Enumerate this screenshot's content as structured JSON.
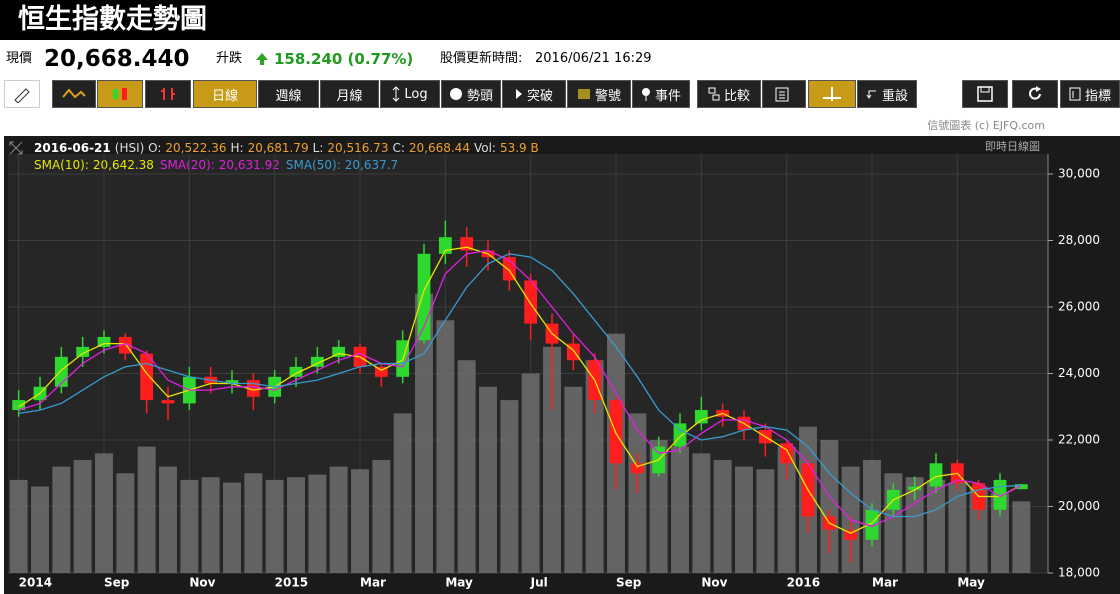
{
  "header": {
    "title": "恒生指數走勢圖"
  },
  "quote": {
    "price_label": "現價",
    "price": "20,668.440",
    "change_label": "升跌",
    "change": "158.240 (0.77%)",
    "update_label": "股價更新時間:",
    "update_time": "2016/06/21 16:29"
  },
  "toolbar": {
    "buttons": [
      "日線",
      "週線",
      "月線",
      "Log",
      "勢頭",
      "突破",
      "警號",
      "事件",
      "比較",
      "重設",
      "指標"
    ]
  },
  "chart_data": {
    "type": "candlestick",
    "credit": "信號圖表 (c) EJFQ.com",
    "mode": "即時日線圖",
    "info_line": [
      "2016-06-21",
      "(HSI) O:",
      "20,522.36",
      "H:",
      "20,681.79",
      "L:",
      "20,516.73",
      "C:",
      "20,668.44",
      "Vol:",
      "53.9 B"
    ],
    "categories": [
      "2014",
      null,
      null,
      null,
      "Sep",
      null,
      null,
      null,
      "Nov",
      null,
      null,
      null,
      "2015",
      null,
      null,
      null,
      "Mar",
      null,
      null,
      null,
      "May",
      null,
      null,
      null,
      "Jul",
      null,
      null,
      null,
      "Sep",
      null,
      null,
      null,
      "Nov",
      null,
      null,
      null,
      "2016",
      null,
      null,
      null,
      "Mar",
      null,
      null,
      null,
      "May",
      null,
      null,
      null
    ],
    "open": [
      22900,
      23200,
      23600,
      24500,
      24800,
      25100,
      24600,
      23200,
      23100,
      23900,
      23700,
      23800,
      23300,
      23900,
      24200,
      24500,
      24800,
      24200,
      23900,
      25000,
      27600,
      28100,
      27700,
      27500,
      26800,
      25500,
      24900,
      24400,
      23200,
      21300,
      21000,
      21800,
      22500,
      22900,
      22700,
      22300,
      21900,
      21300,
      19700,
      19300,
      19000,
      19900,
      20500,
      20600,
      21300,
      20700,
      19900,
      20522.36
    ],
    "high": [
      23500,
      23900,
      24800,
      25100,
      25300,
      25200,
      24700,
      23600,
      24200,
      24200,
      24100,
      24000,
      24100,
      24500,
      24800,
      25000,
      24900,
      24300,
      25300,
      27900,
      28600,
      28400,
      28000,
      27700,
      27000,
      25800,
      25200,
      24600,
      23300,
      21600,
      22100,
      22800,
      23300,
      23100,
      22900,
      22500,
      22000,
      21400,
      19900,
      19700,
      20100,
      20700,
      20900,
      21600,
      21400,
      20800,
      21000,
      20681.79
    ],
    "low": [
      22700,
      22900,
      23400,
      24200,
      24600,
      24400,
      22800,
      22600,
      22900,
      23400,
      23400,
      22900,
      23100,
      23600,
      24000,
      24300,
      24000,
      23600,
      23700,
      24900,
      27300,
      27200,
      27100,
      26500,
      25000,
      22900,
      24100,
      22800,
      20500,
      20400,
      20900,
      21600,
      22300,
      22400,
      22000,
      21500,
      20800,
      19200,
      18600,
      18300,
      18800,
      19700,
      20200,
      20400,
      20500,
      19600,
      19700,
      20516.73
    ],
    "close": [
      23200,
      23600,
      24500,
      24800,
      25100,
      24600,
      23200,
      23100,
      23900,
      23700,
      23800,
      23300,
      23900,
      24200,
      24500,
      24800,
      24200,
      23900,
      25000,
      27600,
      28100,
      27700,
      27500,
      26800,
      25500,
      24900,
      24400,
      23200,
      21300,
      21000,
      21800,
      22500,
      22900,
      22700,
      22300,
      21900,
      21300,
      19700,
      19300,
      19000,
      19900,
      20500,
      20600,
      21300,
      20700,
      19900,
      20800,
      20668.44
    ],
    "up_color": "#2ed82e",
    "down_color": "#ff1e1e",
    "series": [
      {
        "name": "SMA(10):",
        "value_label": "20,642.38",
        "color": "#e6e600",
        "values": [
          23000,
          23400,
          24100,
          24600,
          24900,
          24900,
          24000,
          23300,
          23500,
          23700,
          23700,
          23500,
          23600,
          24000,
          24300,
          24600,
          24500,
          24100,
          24400,
          26500,
          27700,
          27800,
          27600,
          27100,
          26100,
          25200,
          24700,
          23800,
          22200,
          21200,
          21400,
          22100,
          22600,
          22800,
          22500,
          22100,
          21700,
          20500,
          19500,
          19200,
          19500,
          20200,
          20500,
          20900,
          21000,
          20300,
          20300,
          20642.38
        ]
      },
      {
        "name": "SMA(20):",
        "value_label": "20,631.92",
        "color": "#e020e0",
        "values": [
          22900,
          23100,
          23700,
          24300,
          24700,
          24900,
          24600,
          23800,
          23500,
          23500,
          23600,
          23600,
          23500,
          23800,
          24100,
          24400,
          24600,
          24300,
          24200,
          25400,
          27000,
          27600,
          27700,
          27400,
          26800,
          26000,
          25200,
          24500,
          23400,
          22300,
          21600,
          21700,
          22200,
          22600,
          22600,
          22400,
          22000,
          21300,
          20300,
          19600,
          19400,
          19700,
          20100,
          20500,
          20800,
          20700,
          20300,
          20631.92
        ]
      },
      {
        "name": "SMA(50):",
        "value_label": "20,637.7",
        "color": "#3a9ad0",
        "values": [
          22800,
          22900,
          23100,
          23500,
          23900,
          24200,
          24300,
          24100,
          23900,
          23800,
          23700,
          23700,
          23600,
          23700,
          23800,
          24000,
          24200,
          24300,
          24300,
          24600,
          25600,
          26600,
          27300,
          27600,
          27500,
          27100,
          26400,
          25600,
          24800,
          23900,
          22900,
          22300,
          22000,
          22100,
          22300,
          22400,
          22300,
          21800,
          21000,
          20400,
          19900,
          19700,
          19700,
          19900,
          20300,
          20500,
          20600,
          20637.7
        ]
      },
      {
        "name": "Vol",
        "axis": "y2",
        "color": "#6e6e6e",
        "values": [
          70,
          65,
          80,
          85,
          90,
          75,
          95,
          80,
          70,
          72,
          68,
          75,
          70,
          72,
          74,
          80,
          78,
          85,
          120,
          210,
          190,
          160,
          140,
          130,
          150,
          170,
          140,
          160,
          180,
          120,
          100,
          95,
          90,
          85,
          80,
          78,
          95,
          110,
          100,
          80,
          85,
          75,
          72,
          70,
          68,
          65,
          60,
          53.9
        ]
      }
    ],
    "ylim": [
      18000,
      30000
    ],
    "yticks": [
      {
        "value": 18000,
        "label": "18,000"
      },
      {
        "value": 20000,
        "label": "20,000"
      },
      {
        "value": 22000,
        "label": "22,000"
      },
      {
        "value": 24000,
        "label": "24,000"
      },
      {
        "value": 26000,
        "label": "26,000"
      },
      {
        "value": 28000,
        "label": "28,000"
      },
      {
        "value": 30000,
        "label": "30,000"
      }
    ],
    "y2lim": [
      0,
      300
    ],
    "grid": true
  }
}
